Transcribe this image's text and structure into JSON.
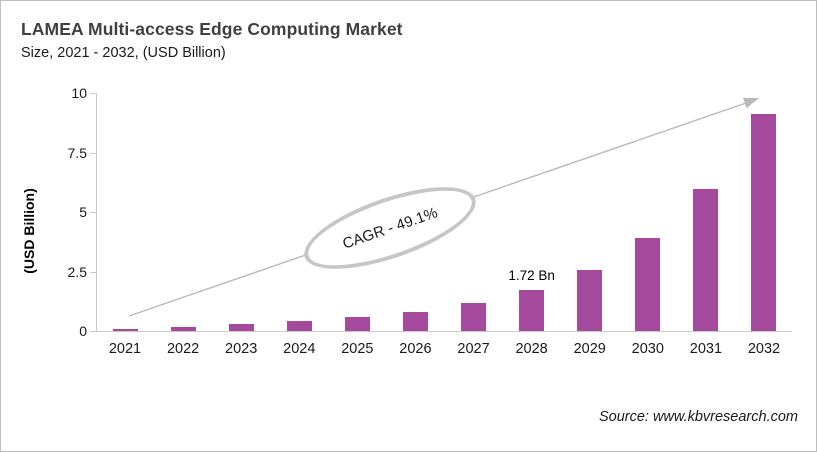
{
  "header": {
    "title": "LAMEA Multi-access Edge Computing Market",
    "subtitle": "Size, 2021 - 2032, (USD Billion)"
  },
  "chart_data": {
    "type": "bar",
    "title": "LAMEA Multi-access Edge Computing Market Size, 2021 - 2032, (USD Billion)",
    "categories": [
      "2021",
      "2022",
      "2023",
      "2024",
      "2025",
      "2026",
      "2027",
      "2028",
      "2029",
      "2030",
      "2031",
      "2032"
    ],
    "values": [
      0.1,
      0.19,
      0.28,
      0.42,
      0.57,
      0.81,
      1.17,
      1.72,
      2.56,
      3.9,
      5.95,
      9.1
    ],
    "xlabel": "",
    "ylabel": "(USD Billion)",
    "ylim": [
      0,
      10
    ],
    "y_ticks": [
      0,
      2.5,
      5,
      7.5,
      10
    ],
    "grid": false,
    "legend": "none",
    "bar_color": "#a5499d",
    "axis_color": "#c9c9c9",
    "annotations": {
      "data_label": {
        "category": "2028",
        "text": "1.72 Bn"
      },
      "cagr": {
        "text": "CAGR - 49.1%"
      },
      "trend_arrow_color": "#b9b9b9"
    }
  },
  "source": {
    "text": "Source: www.kbvresearch.com"
  }
}
